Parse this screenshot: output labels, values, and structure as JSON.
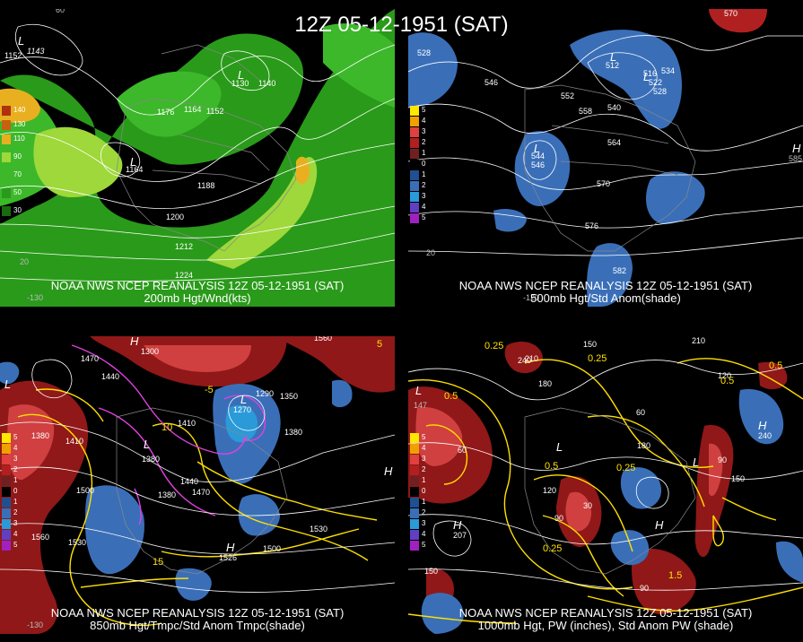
{
  "title": "12Z 05-12-1951 (SAT)",
  "panels": {
    "top_left": {
      "caption_1": "NOAA NWS NCEP REANALYSIS 12Z 05-12-1951 (SAT)",
      "caption_2": "200mb Hgt/Wnd(kts)",
      "legend": [
        "140",
        "130",
        "110",
        "90",
        "70",
        "50",
        "30"
      ],
      "contours": [
        "1152",
        "1143",
        "1130",
        "1140",
        "1176",
        "1164",
        "1152",
        "1164",
        "1188",
        "1200",
        "1212",
        "1224"
      ],
      "coords": [
        "60",
        "20",
        "-130"
      ]
    },
    "top_right": {
      "caption_1": "NOAA NWS NCEP REANALYSIS 12Z 05-12-1951 (SAT)",
      "caption_2": "500mb Hgt/Std Anom(shade)",
      "legend": [
        "5",
        "4",
        "3",
        "2",
        "1",
        "0",
        "1",
        "2",
        "3",
        "4",
        "5"
      ],
      "contours": [
        "528",
        "546",
        "552",
        "558",
        "540",
        "564",
        "570",
        "576",
        "582",
        "516",
        "522",
        "534",
        "528",
        "570",
        "512",
        "544",
        "546"
      ],
      "coords": [
        "20",
        "-120",
        "-130",
        "585"
      ]
    },
    "bottom_left": {
      "caption_1": "NOAA NWS NCEP REANALYSIS 12Z 05-12-1951 (SAT)",
      "caption_2": "850mb Hgt/Tmpc/Std Anom Tmpc(shade)",
      "legend": [
        "5",
        "4",
        "3",
        "2",
        "1",
        "0",
        "1",
        "2",
        "3",
        "4",
        "5"
      ],
      "contours": [
        "1560",
        "1470",
        "1440",
        "1410",
        "1380",
        "1410",
        "1500",
        "1560",
        "1530",
        "1290",
        "1350",
        "1380",
        "1380",
        "1440",
        "1470",
        "1380",
        "1500",
        "1530",
        "1300",
        "1270",
        "1526",
        "15",
        "5",
        "10",
        "-5"
      ],
      "coords": [
        "-130"
      ]
    },
    "bottom_right": {
      "caption_1": "NOAA NWS NCEP REANALYSIS 12Z 05-12-1951 (SAT)",
      "caption_2": "1000mb Hgt, PW (inches), Std Anom PW (shade)",
      "legend": [
        "5",
        "4",
        "3",
        "2",
        "1",
        "0",
        "1",
        "2",
        "3",
        "4",
        "5"
      ],
      "contours": [
        "150",
        "240",
        "210",
        "180",
        "120",
        "60",
        "30",
        "90",
        "150",
        "0.25",
        "0.5",
        "0.25",
        "0.5",
        "0.25",
        "0.5",
        "1.5",
        "0.5",
        "0.25",
        "207",
        "240",
        "90",
        "60",
        "120",
        "180",
        "210",
        "150",
        "90"
      ],
      "coords": [
        "147"
      ]
    }
  }
}
